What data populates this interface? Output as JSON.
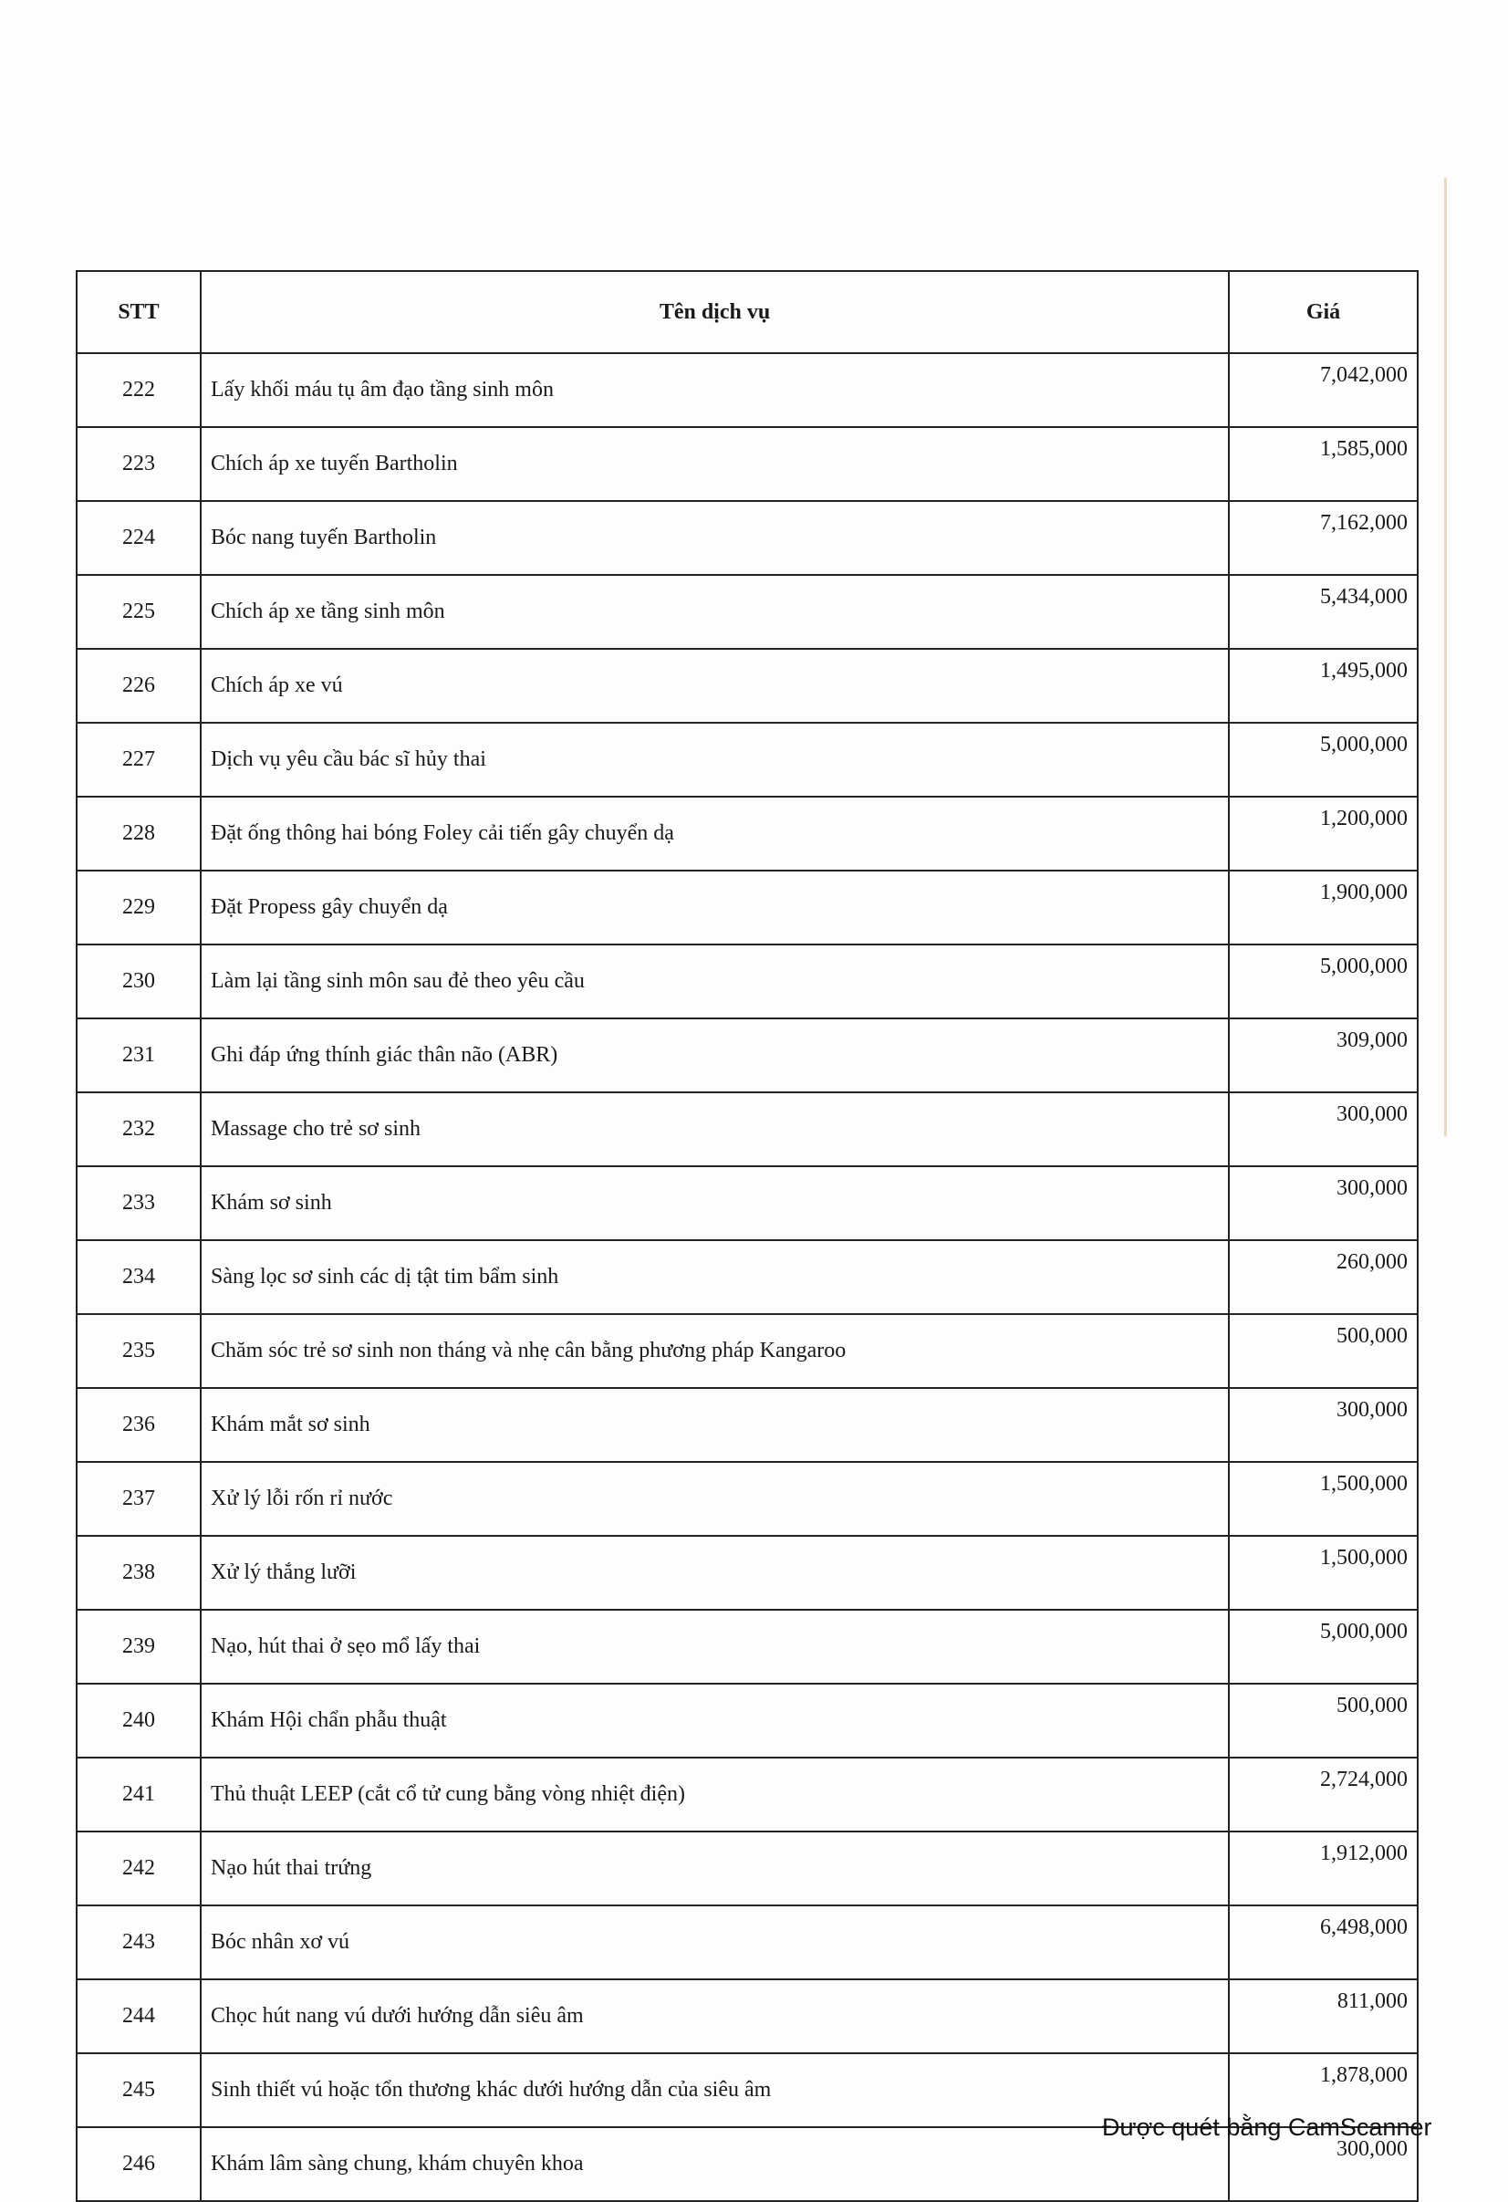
{
  "table": {
    "headers": {
      "stt": "STT",
      "name": "Tên dịch vụ",
      "price": "Giá"
    },
    "rows": [
      {
        "stt": "222",
        "name": "Lấy khối máu tụ âm đạo tầng sinh môn",
        "price": "7,042,000"
      },
      {
        "stt": "223",
        "name": "Chích áp xe tuyến Bartholin",
        "price": "1,585,000"
      },
      {
        "stt": "224",
        "name": "Bóc nang tuyến Bartholin",
        "price": "7,162,000"
      },
      {
        "stt": "225",
        "name": "Chích áp xe tầng sinh môn",
        "price": "5,434,000"
      },
      {
        "stt": "226",
        "name": "Chích áp xe vú",
        "price": "1,495,000"
      },
      {
        "stt": "227",
        "name": "Dịch vụ yêu cầu bác sĩ hủy thai",
        "price": "5,000,000"
      },
      {
        "stt": "228",
        "name": "Đặt ống thông hai bóng Foley cải tiến gây chuyển dạ",
        "price": "1,200,000"
      },
      {
        "stt": "229",
        "name": "Đặt Propess gây chuyển dạ",
        "price": "1,900,000"
      },
      {
        "stt": "230",
        "name": "Làm lại tầng sinh môn sau đẻ theo yêu cầu",
        "price": "5,000,000"
      },
      {
        "stt": "231",
        "name": "Ghi đáp ứng thính giác thân não (ABR)",
        "price": "309,000"
      },
      {
        "stt": "232",
        "name": "Massage cho trẻ sơ sinh",
        "price": "300,000"
      },
      {
        "stt": "233",
        "name": "Khám sơ sinh",
        "price": "300,000"
      },
      {
        "stt": "234",
        "name": "Sàng lọc sơ sinh các dị tật tim bẩm sinh",
        "price": "260,000"
      },
      {
        "stt": "235",
        "name": "Chăm sóc trẻ sơ sinh non tháng và nhẹ cân bằng phương pháp Kangaroo",
        "price": "500,000"
      },
      {
        "stt": "236",
        "name": "Khám mắt sơ sinh",
        "price": "300,000"
      },
      {
        "stt": "237",
        "name": "Xử lý lỗi rốn rỉ nước",
        "price": "1,500,000"
      },
      {
        "stt": "238",
        "name": "Xử lý thắng lưỡi",
        "price": "1,500,000"
      },
      {
        "stt": "239",
        "name": "Nạo, hút thai ở sẹo mổ lấy thai",
        "price": "5,000,000"
      },
      {
        "stt": "240",
        "name": "Khám Hội chẩn phẫu thuật",
        "price": "500,000"
      },
      {
        "stt": "241",
        "name": "Thủ thuật LEEP (cắt cổ tử cung bằng vòng nhiệt điện)",
        "price": "2,724,000"
      },
      {
        "stt": "242",
        "name": "Nạo hút thai trứng",
        "price": "1,912,000"
      },
      {
        "stt": "243",
        "name": "Bóc nhân xơ vú",
        "price": "6,498,000"
      },
      {
        "stt": "244",
        "name": "Chọc hút nang vú dưới hướng dẫn siêu âm",
        "price": "811,000"
      },
      {
        "stt": "245",
        "name": "Sinh thiết vú hoặc tổn thương khác dưới hướng dẫn của siêu âm",
        "price": "1,878,000"
      },
      {
        "stt": "246",
        "name": "Khám lâm sàng chung, khám chuyên khoa",
        "price": "300,000"
      }
    ]
  },
  "footer": {
    "watermark": "Được quét bằng CamScanner"
  }
}
